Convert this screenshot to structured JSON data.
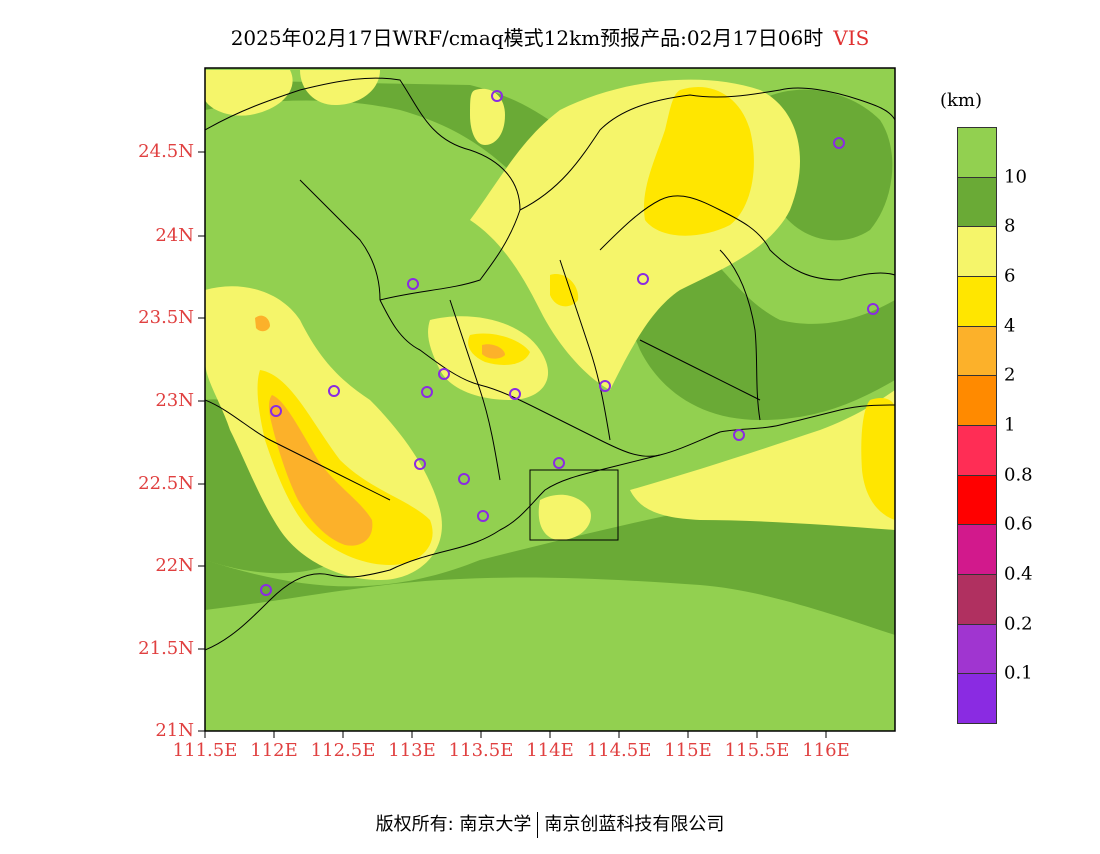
{
  "title": {
    "main": "2025年02月17日WRF/cmaq模式12km预报产品:02月17日06时",
    "variable": "VIS"
  },
  "lat_labels": [
    "24.5N",
    "24N",
    "23.5N",
    "23N",
    "22.5N",
    "22N",
    "21.5N",
    "21N"
  ],
  "lon_labels": [
    "111.5E",
    "112E",
    "112.5E",
    "113E",
    "113.5E",
    "114E",
    "114.5E",
    "115E",
    "115.5E",
    "116E"
  ],
  "legend": {
    "unit": "(km)",
    "ticks": [
      "10",
      "8",
      "6",
      "4",
      "2",
      "1",
      "0.8",
      "0.6",
      "0.4",
      "0.2",
      "0.1"
    ],
    "colors": [
      "#92d050",
      "#6aaa36",
      "#f5f56a",
      "#ffe600",
      "#fcb12a",
      "#ff8a00",
      "#ff2d55",
      "#ff0000",
      "#d2198c",
      "#b03060",
      "#a035d0",
      "#8a2be2"
    ]
  },
  "colors": {
    "vis_gt10": "#92d050",
    "vis_8_10": "#6aaa36",
    "vis_6_8": "#f5f56a",
    "vis_4_6": "#ffe600",
    "vis_2_4": "#fcb12a",
    "axis_label": "#e04040",
    "station_marker": "#8a2be2"
  },
  "footer": {
    "copyright": "版权所有: 南京大学",
    "company": "南京创蓝科技有限公司"
  }
}
